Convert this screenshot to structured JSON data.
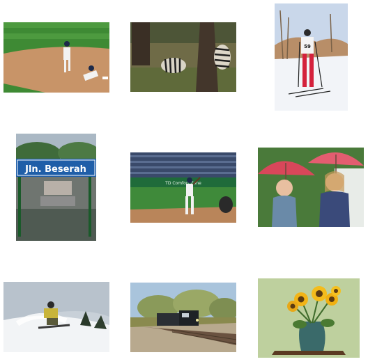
{
  "grid": {
    "tiles": [
      {
        "id": "baseball-infield"
      },
      {
        "id": "zebras"
      },
      {
        "id": "skier-on-trail",
        "bib": "59"
      },
      {
        "id": "station-sign",
        "sign_text": "Jln. Beserah"
      },
      {
        "id": "batter-stadium",
        "banner_text": "TD Comfort Zone"
      },
      {
        "id": "girls-umbrellas"
      },
      {
        "id": "snowboarder"
      },
      {
        "id": "train-tracks"
      },
      {
        "id": "sunflowers-vase"
      }
    ]
  }
}
